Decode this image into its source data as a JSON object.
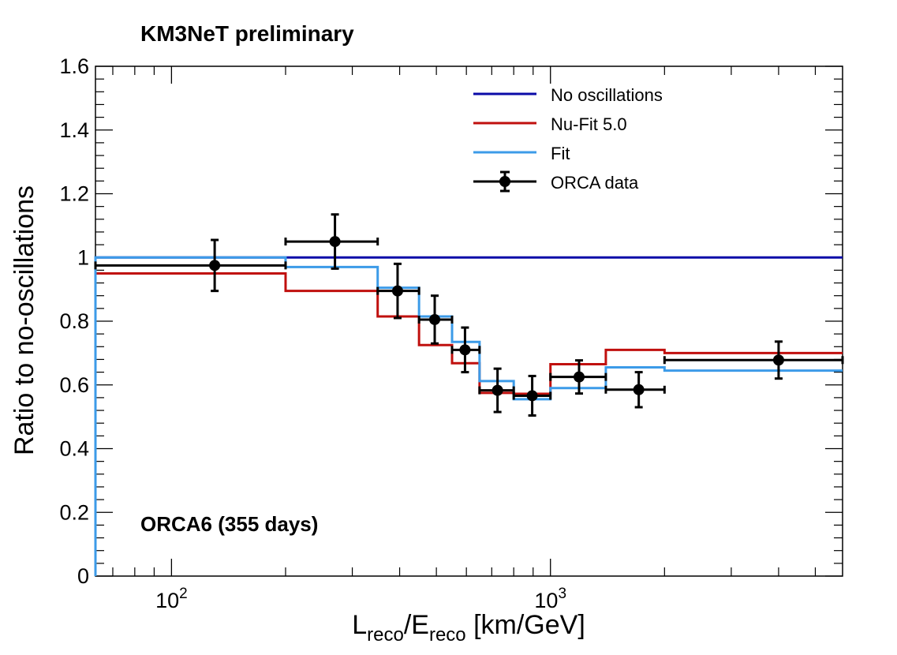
{
  "header": "KM3NeT preliminary",
  "annotation": "ORCA6 (355 days)",
  "chart_data": {
    "type": "line",
    "title": "",
    "xlabel": {
      "main1": "L",
      "sub1": "reco",
      "slash": "/E",
      "sub2": "reco",
      "rest": " [km/GeV]"
    },
    "ylabel": "Ratio to no-oscillations",
    "xscale": "log",
    "xlim": [
      63,
      5900
    ],
    "ylim": [
      0,
      1.6
    ],
    "y_ticks": [
      0,
      0.2,
      0.4,
      0.6,
      0.8,
      1,
      1.2,
      1.4,
      1.6
    ],
    "y_tick_labels": [
      "0",
      "0.2",
      "0.4",
      "0.6",
      "0.8",
      "1",
      "1.2",
      "1.4",
      "1.6"
    ],
    "x_major_ticks": [
      {
        "base": "10",
        "exp": "2",
        "value": 100
      },
      {
        "base": "10",
        "exp": "3",
        "value": 1000
      }
    ],
    "x_minor_ticks": [
      70,
      80,
      90,
      200,
      300,
      400,
      500,
      600,
      700,
      800,
      900,
      2000,
      3000,
      4000,
      5000
    ],
    "bin_edges": [
      63,
      200,
      350,
      450,
      550,
      650,
      800,
      1000,
      1400,
      2000,
      5900
    ],
    "series": [
      {
        "name": "No oscillations",
        "color": "#0a0aa8",
        "values": [
          1,
          1,
          1,
          1,
          1,
          1,
          1,
          1,
          1,
          1
        ]
      },
      {
        "name": "Nu-Fit 5.0",
        "color": "#c0100e",
        "values": [
          0.95,
          0.895,
          0.815,
          0.725,
          0.668,
          0.575,
          0.572,
          0.665,
          0.71,
          0.7
        ]
      },
      {
        "name": "Fit",
        "color": "#3c9be8",
        "values": [
          1.0,
          0.97,
          0.905,
          0.815,
          0.735,
          0.612,
          0.555,
          0.59,
          0.655,
          0.645
        ]
      }
    ],
    "data_series": {
      "name": "ORCA data",
      "color": "#000000",
      "points": [
        {
          "x": 130,
          "xlo": 63,
          "xhi": 200,
          "y": 0.975,
          "yerr": 0.08
        },
        {
          "x": 270,
          "xlo": 200,
          "xhi": 350,
          "y": 1.05,
          "yerr": 0.085
        },
        {
          "x": 395,
          "xlo": 350,
          "xhi": 450,
          "y": 0.895,
          "yerr": 0.085
        },
        {
          "x": 495,
          "xlo": 450,
          "xhi": 550,
          "y": 0.805,
          "yerr": 0.075
        },
        {
          "x": 595,
          "xlo": 550,
          "xhi": 650,
          "y": 0.71,
          "yerr": 0.07
        },
        {
          "x": 725,
          "xlo": 650,
          "xhi": 800,
          "y": 0.583,
          "yerr": 0.068
        },
        {
          "x": 895,
          "xlo": 800,
          "xhi": 1000,
          "y": 0.566,
          "yerr": 0.062
        },
        {
          "x": 1190,
          "xlo": 1000,
          "xhi": 1400,
          "y": 0.625,
          "yerr": 0.052
        },
        {
          "x": 1710,
          "xlo": 1400,
          "xhi": 2000,
          "y": 0.585,
          "yerr": 0.055
        },
        {
          "x": 4000,
          "xlo": 2000,
          "xhi": 5900,
          "y": 0.678,
          "yerr": 0.058
        }
      ]
    },
    "legend": [
      "No oscillations",
      "Nu-Fit 5.0",
      "Fit",
      "ORCA data"
    ],
    "legend_position": "top-right"
  }
}
